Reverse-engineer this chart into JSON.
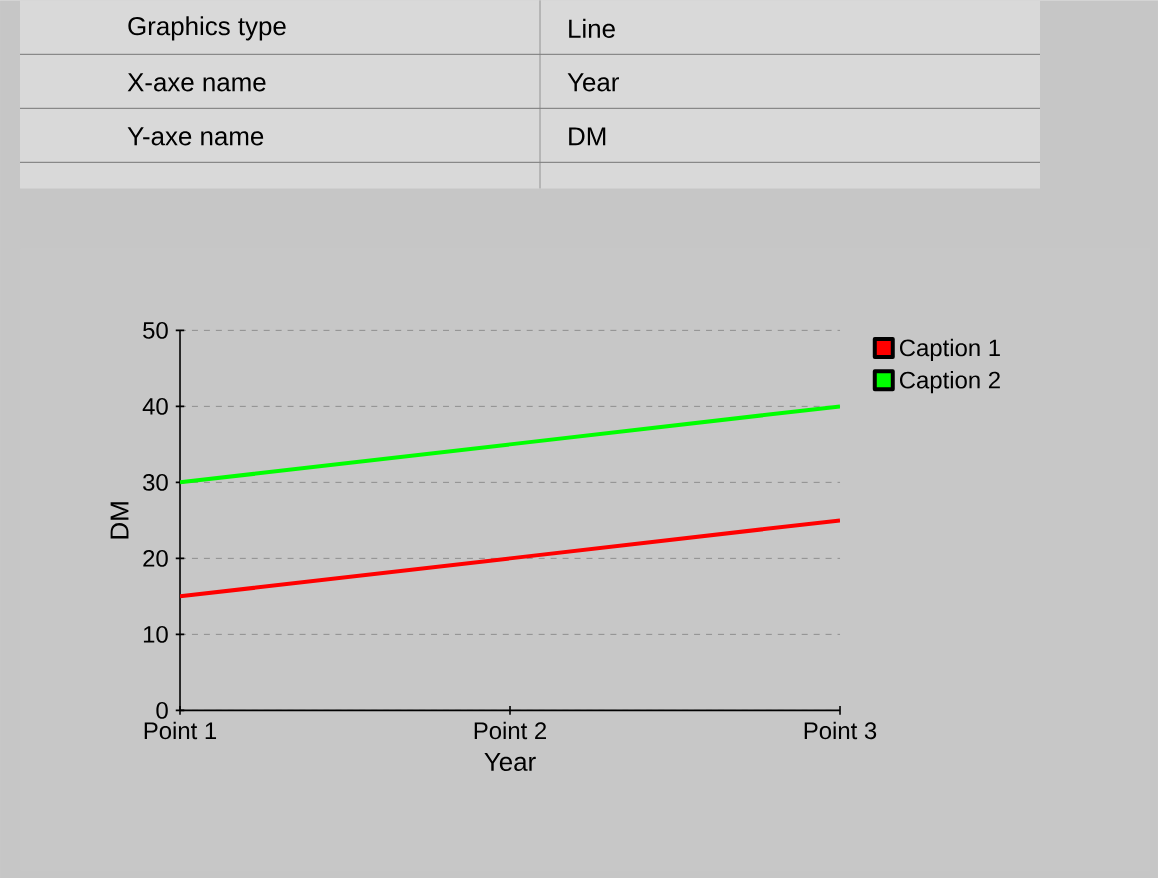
{
  "chart_data": {
    "type": "line",
    "xlabel": "Year",
    "ylabel": "DM",
    "categories": [
      "Point 1",
      "Point 2",
      "Point 3"
    ],
    "series": [
      {
        "name": "Caption 1",
        "color": "#ff0000",
        "values": [
          15,
          20,
          25
        ]
      },
      {
        "name": "Caption 2",
        "color": "#00ff00",
        "values": [
          30,
          35,
          40
        ]
      }
    ],
    "ylim": [
      0,
      50
    ],
    "yticks": [
      0,
      10,
      20,
      30,
      40,
      50
    ],
    "grid": "y",
    "legend": "top right",
    "annotations": [
      "Graphics type",
      "Line",
      "X-axe name",
      "Year",
      "Y-axe name",
      "DM"
    ]
  }
}
